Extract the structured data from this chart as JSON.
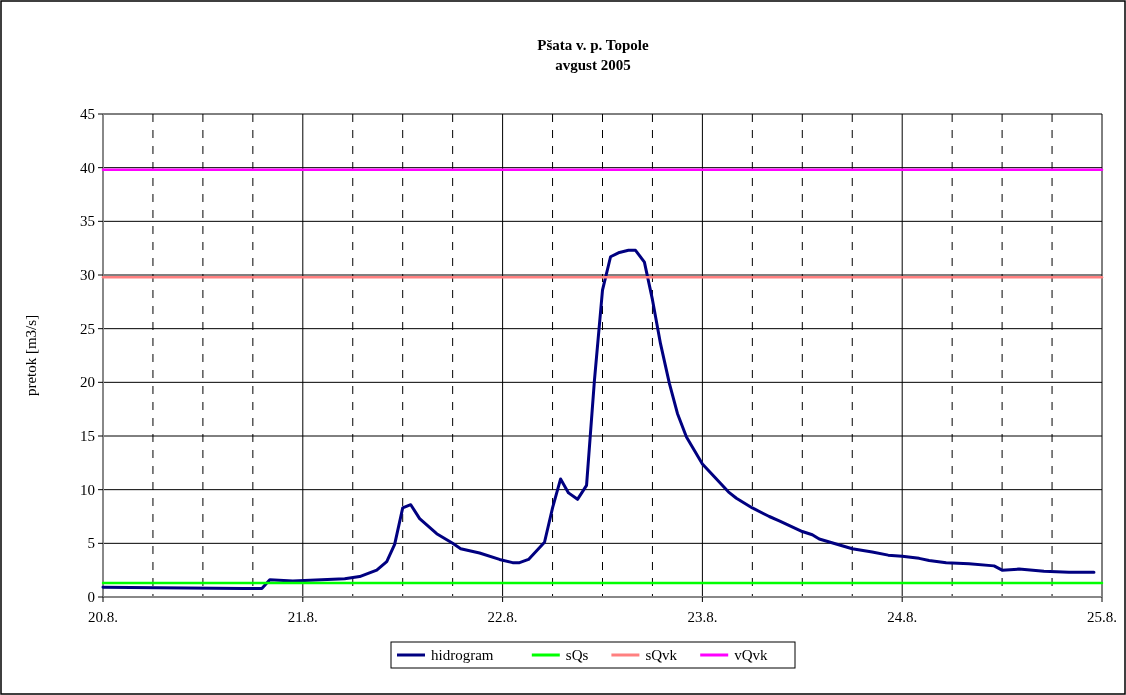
{
  "chart_data": {
    "type": "line",
    "title": "Pšata v. p. Topole",
    "subtitle": "avgust 2005",
    "ylabel": "pretok [m3/s]",
    "xlim": [
      "2005-08-20T00:00",
      "2005-08-25T00:00"
    ],
    "ylim": [
      0,
      45
    ],
    "xticks": [
      {
        "value": "2005-08-20T00:00",
        "label": "20.8."
      },
      {
        "value": "2005-08-20T06:00",
        "label": null
      },
      {
        "value": "2005-08-20T12:00",
        "label": null
      },
      {
        "value": "2005-08-20T18:00",
        "label": null
      },
      {
        "value": "2005-08-21T00:00",
        "label": "21.8."
      },
      {
        "value": "2005-08-21T06:00",
        "label": null
      },
      {
        "value": "2005-08-21T12:00",
        "label": null
      },
      {
        "value": "2005-08-21T18:00",
        "label": null
      },
      {
        "value": "2005-08-22T00:00",
        "label": "22.8."
      },
      {
        "value": "2005-08-22T06:00",
        "label": null
      },
      {
        "value": "2005-08-22T12:00",
        "label": null
      },
      {
        "value": "2005-08-22T18:00",
        "label": null
      },
      {
        "value": "2005-08-23T00:00",
        "label": "23.8."
      },
      {
        "value": "2005-08-23T06:00",
        "label": null
      },
      {
        "value": "2005-08-23T12:00",
        "label": null
      },
      {
        "value": "2005-08-23T18:00",
        "label": null
      },
      {
        "value": "2005-08-24T00:00",
        "label": "24.8."
      },
      {
        "value": "2005-08-24T06:00",
        "label": null
      },
      {
        "value": "2005-08-24T12:00",
        "label": null
      },
      {
        "value": "2005-08-24T18:00",
        "label": null
      },
      {
        "value": "2005-08-25T00:00",
        "label": "25.8."
      }
    ],
    "yticks": [
      0,
      5,
      10,
      15,
      20,
      25,
      30,
      35,
      40,
      45
    ],
    "grid": true,
    "legend": "bottom",
    "marker": "none",
    "line_style": "solid",
    "series": [
      {
        "name": "hidrogram",
        "color": "#000080",
        "x": [
          "2005-08-20T00:00",
          "2005-08-20T16:48",
          "2005-08-20T19:05",
          "2005-08-20T20:02",
          "2005-08-20T22:48",
          "2005-08-21T05:02",
          "2005-08-21T06:50",
          "2005-08-21T08:53",
          "2005-08-21T10:05",
          "2005-08-21T11:02",
          "2005-08-21T12:00",
          "2005-08-21T12:58",
          "2005-08-21T14:02",
          "2005-08-21T16:05",
          "2005-08-21T18:00",
          "2005-08-21T18:58",
          "2005-08-21T21:14",
          "2005-08-21T23:38",
          "2005-08-22T01:12",
          "2005-08-22T02:02",
          "2005-08-22T03:07",
          "2005-08-22T05:02",
          "2005-08-22T06:00",
          "2005-08-22T06:58",
          "2005-08-22T07:55",
          "2005-08-22T09:00",
          "2005-08-22T10:05",
          "2005-08-22T11:02",
          "2005-08-22T12:00",
          "2005-08-22T12:58",
          "2005-08-22T14:02",
          "2005-08-22T15:07",
          "2005-08-22T15:58",
          "2005-08-22T17:02",
          "2005-08-22T18:00",
          "2005-08-22T18:58",
          "2005-08-22T20:02",
          "2005-08-22T21:00",
          "2005-08-22T22:05",
          "2005-08-23T00:00",
          "2005-08-23T01:26",
          "2005-08-23T03:07",
          "2005-08-23T04:05",
          "2005-08-23T06:00",
          "2005-08-23T08:02",
          "2005-08-23T09:14",
          "2005-08-23T12:00",
          "2005-08-23T13:12",
          "2005-08-23T14:02",
          "2005-08-23T18:00",
          "2005-08-23T20:24",
          "2005-08-23T22:19",
          "2005-08-24T00:00",
          "2005-08-24T02:02",
          "2005-08-24T03:14",
          "2005-08-24T05:17",
          "2005-08-24T08:02",
          "2005-08-24T11:02",
          "2005-08-24T12:00",
          "2005-08-24T14:02",
          "2005-08-24T17:02",
          "2005-08-24T20:02",
          "2005-08-24T23:02"
        ],
        "values": [
          0.9,
          0.8,
          0.8,
          1.6,
          1.5,
          1.7,
          1.9,
          2.5,
          3.3,
          4.9,
          8.3,
          8.6,
          7.3,
          5.9,
          5,
          4.5,
          4.1,
          3.5,
          3.2,
          3.2,
          3.5,
          5.1,
          8.3,
          11,
          9.7,
          9.1,
          10.4,
          20.2,
          28.6,
          31.7,
          32.1,
          32.3,
          32.3,
          31.2,
          27.7,
          23.6,
          19.9,
          17.1,
          14.9,
          12.4,
          11.2,
          9.8,
          9.2,
          8.3,
          7.5,
          7.1,
          6.1,
          5.8,
          5.4,
          4.5,
          4.2,
          3.9,
          3.8,
          3.6,
          3.4,
          3.2,
          3.1,
          2.9,
          2.5,
          2.6,
          2.4,
          2.3,
          2.3
        ]
      },
      {
        "name": "sQs",
        "color": "#00ff00",
        "x": [
          "2005-08-20T00:00",
          "2005-08-25T00:00"
        ],
        "values": [
          1.3,
          1.3
        ]
      },
      {
        "name": "sQvk",
        "color": "#ff8080",
        "x": [
          "2005-08-20T00:00",
          "2005-08-25T00:00"
        ],
        "values": [
          29.8,
          29.8
        ]
      },
      {
        "name": "vQvk",
        "color": "#ff00ff",
        "x": [
          "2005-08-20T00:00",
          "2005-08-25T00:00"
        ],
        "values": [
          39.8,
          39.8
        ]
      }
    ]
  }
}
